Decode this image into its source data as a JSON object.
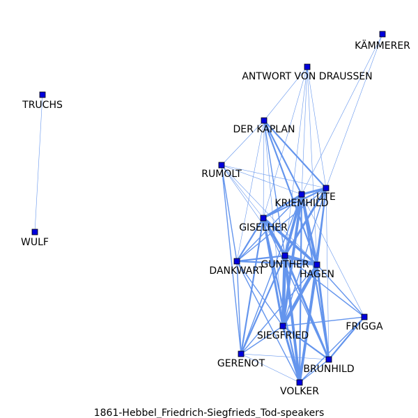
{
  "title": "1861-Hebbel_Friedrich-Siegfrieds_Tod-speakers",
  "colors": {
    "node_fill": "#0000dd",
    "node_stroke": "#000000",
    "edge": "#6495ed",
    "background": "#ffffff"
  },
  "nodes": [
    {
      "id": "kammerer",
      "label": "KÄMMERER"
    },
    {
      "id": "antwort",
      "label": "ANTWORT VON DRAUSSEN"
    },
    {
      "id": "truchs",
      "label": "TRUCHS"
    },
    {
      "id": "kaplan",
      "label": "DER KAPLAN"
    },
    {
      "id": "rumolt",
      "label": "RUMOLT"
    },
    {
      "id": "ute",
      "label": "UTE"
    },
    {
      "id": "kriemhild",
      "label": "KRIEMHILD"
    },
    {
      "id": "giselher",
      "label": "GISELHER"
    },
    {
      "id": "wulf",
      "label": "WULF"
    },
    {
      "id": "gunther",
      "label": "GUNTHER"
    },
    {
      "id": "dankwart",
      "label": "DANKWART"
    },
    {
      "id": "hagen",
      "label": "HAGEN"
    },
    {
      "id": "frigga",
      "label": "FRIGGA"
    },
    {
      "id": "siegfried",
      "label": "SIEGFRIED"
    },
    {
      "id": "gerenot",
      "label": "GERENOT"
    },
    {
      "id": "brunhild",
      "label": "BRUNHILD"
    },
    {
      "id": "volker",
      "label": "VOLKER"
    }
  ],
  "edges": [
    {
      "source": "truchs",
      "target": "wulf",
      "weight": 1
    },
    {
      "source": "kammerer",
      "target": "ute",
      "weight": 1
    },
    {
      "source": "kammerer",
      "target": "kriemhild",
      "weight": 1
    },
    {
      "source": "antwort",
      "target": "kaplan",
      "weight": 1
    },
    {
      "source": "antwort",
      "target": "ute",
      "weight": 1
    },
    {
      "source": "antwort",
      "target": "kriemhild",
      "weight": 1
    },
    {
      "source": "antwort",
      "target": "giselher",
      "weight": 1
    },
    {
      "source": "antwort",
      "target": "gunther",
      "weight": 1
    },
    {
      "source": "antwort",
      "target": "hagen",
      "weight": 1
    },
    {
      "source": "kaplan",
      "target": "rumolt",
      "weight": 1
    },
    {
      "source": "kaplan",
      "target": "ute",
      "weight": 3
    },
    {
      "source": "kaplan",
      "target": "kriemhild",
      "weight": 3
    },
    {
      "source": "kaplan",
      "target": "giselher",
      "weight": 1
    },
    {
      "source": "kaplan",
      "target": "gunther",
      "weight": 2
    },
    {
      "source": "kaplan",
      "target": "hagen",
      "weight": 3
    },
    {
      "source": "kaplan",
      "target": "dankwart",
      "weight": 1
    },
    {
      "source": "kaplan",
      "target": "siegfried",
      "weight": 1
    },
    {
      "source": "rumolt",
      "target": "ute",
      "weight": 1
    },
    {
      "source": "rumolt",
      "target": "kriemhild",
      "weight": 1
    },
    {
      "source": "rumolt",
      "target": "giselher",
      "weight": 1
    },
    {
      "source": "rumolt",
      "target": "gunther",
      "weight": 1
    },
    {
      "source": "rumolt",
      "target": "hagen",
      "weight": 1
    },
    {
      "source": "rumolt",
      "target": "dankwart",
      "weight": 2
    },
    {
      "source": "rumolt",
      "target": "gerenot",
      "weight": 2
    },
    {
      "source": "ute",
      "target": "kriemhild",
      "weight": 4
    },
    {
      "source": "ute",
      "target": "giselher",
      "weight": 3
    },
    {
      "source": "ute",
      "target": "gunther",
      "weight": 4
    },
    {
      "source": "ute",
      "target": "hagen",
      "weight": 3
    },
    {
      "source": "ute",
      "target": "dankwart",
      "weight": 2
    },
    {
      "source": "ute",
      "target": "siegfried",
      "weight": 2
    },
    {
      "source": "ute",
      "target": "volker",
      "weight": 2
    },
    {
      "source": "ute",
      "target": "brunhild",
      "weight": 1
    },
    {
      "source": "kriemhild",
      "target": "giselher",
      "weight": 4
    },
    {
      "source": "kriemhild",
      "target": "gunther",
      "weight": 5
    },
    {
      "source": "kriemhild",
      "target": "hagen",
      "weight": 5
    },
    {
      "source": "kriemhild",
      "target": "dankwart",
      "weight": 2
    },
    {
      "source": "kriemhild",
      "target": "siegfried",
      "weight": 5
    },
    {
      "source": "kriemhild",
      "target": "volker",
      "weight": 3
    },
    {
      "source": "kriemhild",
      "target": "brunhild",
      "weight": 3
    },
    {
      "source": "kriemhild",
      "target": "frigga",
      "weight": 1
    },
    {
      "source": "kriemhild",
      "target": "gerenot",
      "weight": 2
    },
    {
      "source": "giselher",
      "target": "gunther",
      "weight": 5
    },
    {
      "source": "giselher",
      "target": "hagen",
      "weight": 5
    },
    {
      "source": "giselher",
      "target": "dankwart",
      "weight": 3
    },
    {
      "source": "giselher",
      "target": "siegfried",
      "weight": 4
    },
    {
      "source": "giselher",
      "target": "volker",
      "weight": 3
    },
    {
      "source": "giselher",
      "target": "gerenot",
      "weight": 3
    },
    {
      "source": "giselher",
      "target": "brunhild",
      "weight": 2
    },
    {
      "source": "gunther",
      "target": "hagen",
      "weight": 6
    },
    {
      "source": "gunther",
      "target": "dankwart",
      "weight": 3
    },
    {
      "source": "gunther",
      "target": "siegfried",
      "weight": 6
    },
    {
      "source": "gunther",
      "target": "volker",
      "weight": 5
    },
    {
      "source": "gunther",
      "target": "brunhild",
      "weight": 4
    },
    {
      "source": "gunther",
      "target": "frigga",
      "weight": 2
    },
    {
      "source": "gunther",
      "target": "gerenot",
      "weight": 3
    },
    {
      "source": "hagen",
      "target": "dankwart",
      "weight": 3
    },
    {
      "source": "hagen",
      "target": "siegfried",
      "weight": 6
    },
    {
      "source": "hagen",
      "target": "volker",
      "weight": 5
    },
    {
      "source": "hagen",
      "target": "brunhild",
      "weight": 4
    },
    {
      "source": "hagen",
      "target": "frigga",
      "weight": 2
    },
    {
      "source": "hagen",
      "target": "gerenot",
      "weight": 2
    },
    {
      "source": "dankwart",
      "target": "siegfried",
      "weight": 2
    },
    {
      "source": "dankwart",
      "target": "volker",
      "weight": 2
    },
    {
      "source": "dankwart",
      "target": "gerenot",
      "weight": 2
    },
    {
      "source": "siegfried",
      "target": "volker",
      "weight": 4
    },
    {
      "source": "siegfried",
      "target": "brunhild",
      "weight": 3
    },
    {
      "source": "siegfried",
      "target": "frigga",
      "weight": 2
    },
    {
      "source": "siegfried",
      "target": "gerenot",
      "weight": 2
    },
    {
      "source": "frigga",
      "target": "brunhild",
      "weight": 3
    },
    {
      "source": "frigga",
      "target": "volker",
      "weight": 2
    },
    {
      "source": "brunhild",
      "target": "volker",
      "weight": 2
    },
    {
      "source": "brunhild",
      "target": "gerenot",
      "weight": 1
    },
    {
      "source": "volker",
      "target": "gerenot",
      "weight": 1
    }
  ]
}
